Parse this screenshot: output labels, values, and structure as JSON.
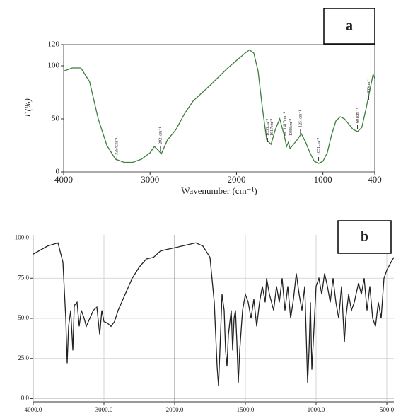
{
  "chart_data": [
    {
      "type": "line",
      "panel": "a",
      "ylabel": "T (%)",
      "xlabel": "Wavenumber (cm⁻¹)",
      "color": "#3d7d3d",
      "grid": false,
      "xlim": [
        4000,
        400
      ],
      "xticks": [
        4000,
        3000,
        2000,
        1000,
        400
      ],
      "ylim": [
        0,
        120
      ],
      "yticks": [
        0,
        50,
        100,
        120
      ],
      "x": [
        4000,
        3900,
        3800,
        3700,
        3600,
        3500,
        3400,
        3300,
        3200,
        3100,
        3000,
        2950,
        2900,
        2870,
        2800,
        2700,
        2600,
        2500,
        2300,
        2100,
        1900,
        1850,
        1800,
        1750,
        1700,
        1650,
        1600,
        1550,
        1500,
        1450,
        1420,
        1400,
        1380,
        1350,
        1300,
        1250,
        1200,
        1150,
        1100,
        1050,
        1000,
        950,
        900,
        850,
        800,
        750,
        700,
        650,
        600,
        550,
        500,
        450,
        420,
        400
      ],
      "values": [
        95,
        98,
        98,
        85,
        50,
        25,
        12,
        9,
        9,
        12,
        18,
        24,
        20,
        17,
        30,
        40,
        55,
        67,
        82,
        98,
        112,
        115,
        112,
        95,
        60,
        30,
        26,
        40,
        50,
        35,
        24,
        28,
        22,
        25,
        30,
        36,
        28,
        18,
        10,
        8,
        10,
        18,
        35,
        48,
        52,
        50,
        45,
        40,
        38,
        42,
        60,
        80,
        92,
        88
      ],
      "annotations": [
        {
          "text": "3384cm⁻¹",
          "x": 3384,
          "y": 12
        },
        {
          "text": "2921cm⁻¹",
          "x": 2880,
          "y": 22
        },
        {
          "text": "1638cm⁻¹",
          "x": 1640,
          "y": 30
        },
        {
          "text": "1617cm⁻¹",
          "x": 1590,
          "y": 30
        },
        {
          "text": "1417cm⁻¹",
          "x": 1440,
          "y": 36
        },
        {
          "text": "1383cm⁻¹",
          "x": 1370,
          "y": 30
        },
        {
          "text": "1251cm⁻¹",
          "x": 1260,
          "y": 38
        },
        {
          "text": "1051cm⁻¹",
          "x": 1050,
          "y": 12
        },
        {
          "text": "601cm⁻¹",
          "x": 600,
          "y": 42
        },
        {
          "text": "465cm⁻¹",
          "x": 470,
          "y": 70
        }
      ]
    },
    {
      "type": "line",
      "panel": "b",
      "color": "#222222",
      "grid": true,
      "x_axis_break": 2000,
      "xlim": [
        4000,
        450
      ],
      "xticks": [
        {
          "value": 4000,
          "label": "4000.0"
        },
        {
          "value": 3000,
          "label": "3000.0"
        },
        {
          "value": 2000,
          "label": "2000.0"
        },
        {
          "value": 1500,
          "label": "1500.0"
        },
        {
          "value": 1000,
          "label": "1000.0"
        },
        {
          "value": 500,
          "label": "500.0"
        }
      ],
      "ylim": [
        -2,
        102
      ],
      "yticks": [
        {
          "value": 0,
          "label": "0.0"
        },
        {
          "value": 25,
          "label": "25.0"
        },
        {
          "value": 50,
          "label": "50.0"
        },
        {
          "value": 75,
          "label": "75.0"
        },
        {
          "value": 100,
          "label": "100.0"
        }
      ],
      "x": [
        4000,
        3800,
        3650,
        3580,
        3540,
        3520,
        3500,
        3470,
        3440,
        3420,
        3380,
        3350,
        3320,
        3280,
        3250,
        3200,
        3150,
        3100,
        3060,
        3030,
        3000,
        2950,
        2900,
        2850,
        2800,
        2700,
        2600,
        2500,
        2400,
        2300,
        2200,
        2100,
        2000,
        1950,
        1900,
        1850,
        1800,
        1750,
        1720,
        1700,
        1690,
        1680,
        1665,
        1650,
        1640,
        1630,
        1620,
        1600,
        1590,
        1580,
        1570,
        1560,
        1550,
        1540,
        1520,
        1500,
        1480,
        1460,
        1440,
        1420,
        1400,
        1380,
        1360,
        1350,
        1330,
        1300,
        1280,
        1260,
        1240,
        1220,
        1200,
        1180,
        1160,
        1140,
        1120,
        1100,
        1080,
        1060,
        1050,
        1040,
        1030,
        1020,
        1000,
        980,
        960,
        940,
        920,
        900,
        880,
        860,
        840,
        820,
        800,
        790,
        770,
        750,
        730,
        700,
        680,
        660,
        640,
        620,
        600,
        580,
        560,
        540,
        520,
        500,
        470,
        450
      ],
      "values": [
        90,
        95,
        97,
        85,
        50,
        22,
        45,
        55,
        30,
        58,
        60,
        45,
        55,
        50,
        45,
        50,
        55,
        57,
        40,
        55,
        48,
        47,
        45,
        48,
        55,
        65,
        75,
        82,
        87,
        88,
        92,
        93,
        94,
        95,
        96,
        97,
        95,
        88,
        60,
        20,
        8,
        30,
        65,
        55,
        30,
        20,
        40,
        55,
        30,
        50,
        55,
        35,
        10,
        30,
        55,
        65,
        60,
        50,
        62,
        45,
        60,
        70,
        60,
        75,
        65,
        55,
        70,
        60,
        75,
        55,
        70,
        50,
        62,
        78,
        65,
        55,
        70,
        10,
        30,
        60,
        18,
        35,
        70,
        75,
        65,
        78,
        70,
        60,
        75,
        60,
        50,
        70,
        35,
        50,
        65,
        55,
        60,
        72,
        65,
        75,
        55,
        70,
        50,
        45,
        60,
        50,
        75,
        80,
        85,
        88
      ]
    }
  ]
}
